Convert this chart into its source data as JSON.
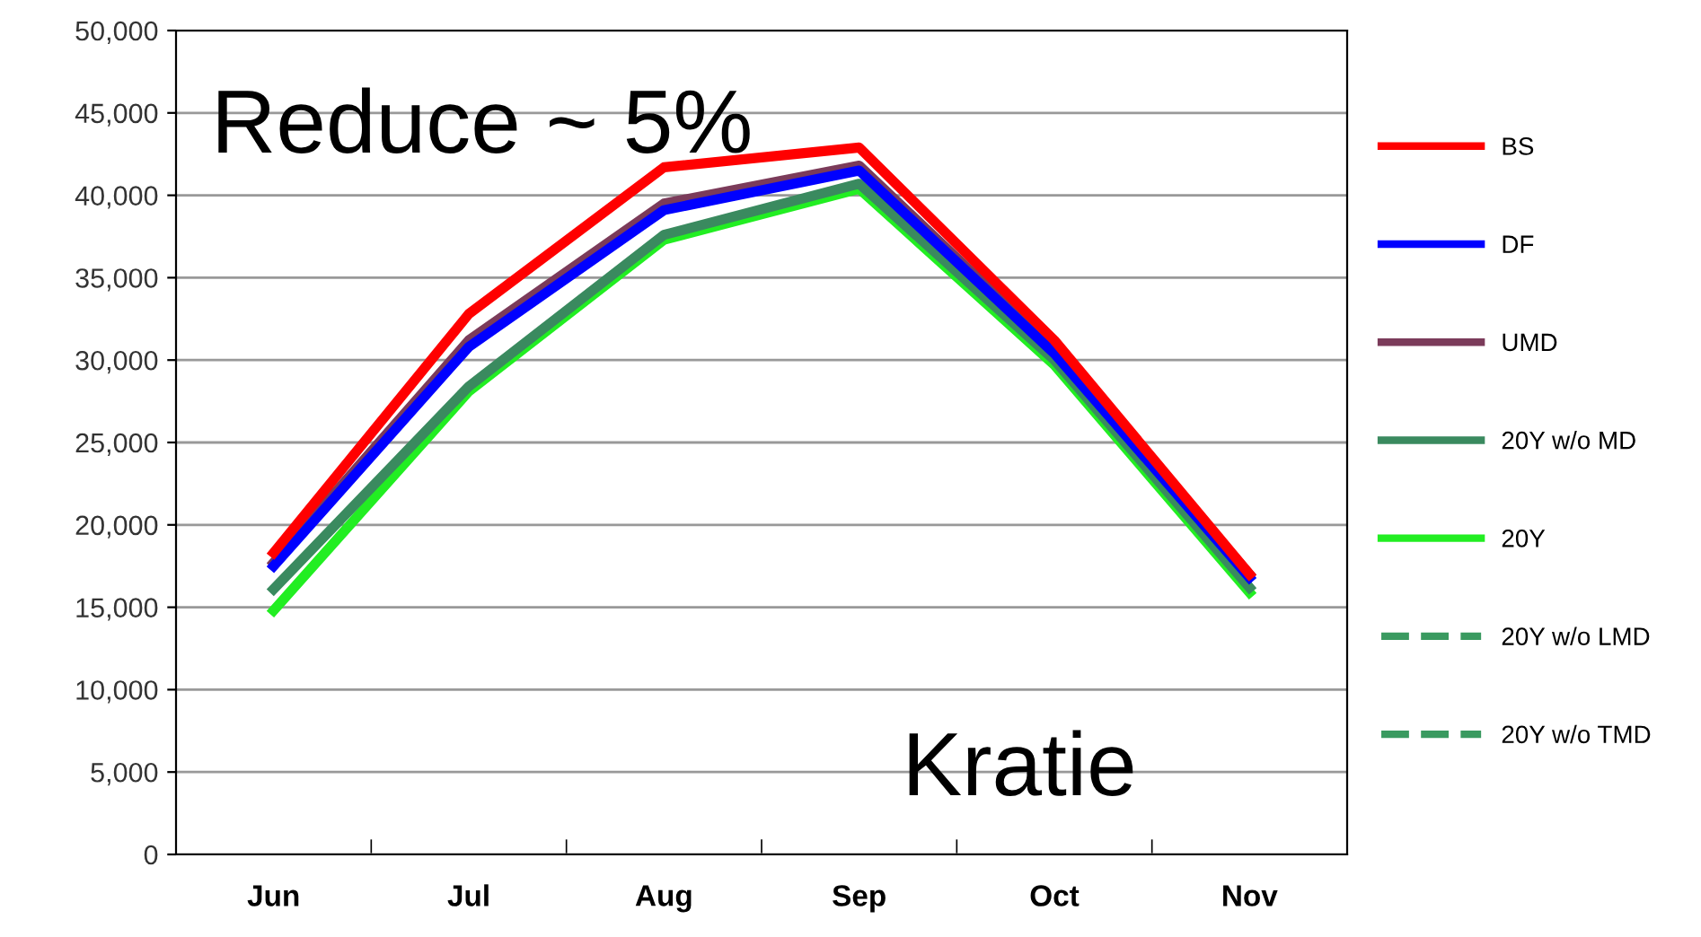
{
  "chart_data": {
    "type": "line",
    "categories": [
      "Jun",
      "Jul",
      "Aug",
      "Sep",
      "Oct",
      "Nov"
    ],
    "series": [
      {
        "name": "20Y w/o TMD",
        "color": "#3a9a60",
        "line_style": "dashed",
        "values": [
          null,
          null,
          null,
          null,
          null,
          null
        ]
      },
      {
        "name": "20Y w/o LMD",
        "color": "#3a9a60",
        "line_style": "dashed",
        "values": [
          null,
          null,
          null,
          null,
          null,
          null
        ]
      },
      {
        "name": "20Y",
        "color": "#22ee22",
        "line_style": "solid",
        "values": [
          14800,
          28100,
          37300,
          40400,
          29700,
          15900
        ]
      },
      {
        "name": "20Y w/o MD",
        "color": "#3a8a5f",
        "line_style": "solid",
        "values": [
          16100,
          28400,
          37600,
          40700,
          30000,
          16200
        ]
      },
      {
        "name": "UMD",
        "color": "#7b3b5a",
        "line_style": "solid",
        "values": [
          17700,
          31200,
          39500,
          41800,
          30600,
          17000
        ]
      },
      {
        "name": "DF",
        "color": "#0000ff",
        "line_style": "solid",
        "values": [
          17500,
          30800,
          39100,
          41500,
          30400,
          16800
        ]
      },
      {
        "name": "BS",
        "color": "#ff0000",
        "line_style": "solid",
        "values": [
          18300,
          32800,
          41700,
          42900,
          31200,
          17000
        ]
      }
    ],
    "ylim": [
      0,
      50000
    ],
    "yticks": [
      {
        "value": 0,
        "label": "0"
      },
      {
        "value": 5000,
        "label": "5,000"
      },
      {
        "value": 10000,
        "label": "10,000"
      },
      {
        "value": 15000,
        "label": "15,000"
      },
      {
        "value": 20000,
        "label": "20,000"
      },
      {
        "value": 25000,
        "label": "25,000"
      },
      {
        "value": 30000,
        "label": "30,000"
      },
      {
        "value": 35000,
        "label": "35,000"
      },
      {
        "value": 40000,
        "label": "40,000"
      },
      {
        "value": 45000,
        "label": "45,000"
      },
      {
        "value": 50000,
        "label": "50,000"
      }
    ],
    "grid": "y",
    "legend": "right",
    "annotations": [
      "Reduce ~ 5%",
      "Kratie"
    ]
  }
}
